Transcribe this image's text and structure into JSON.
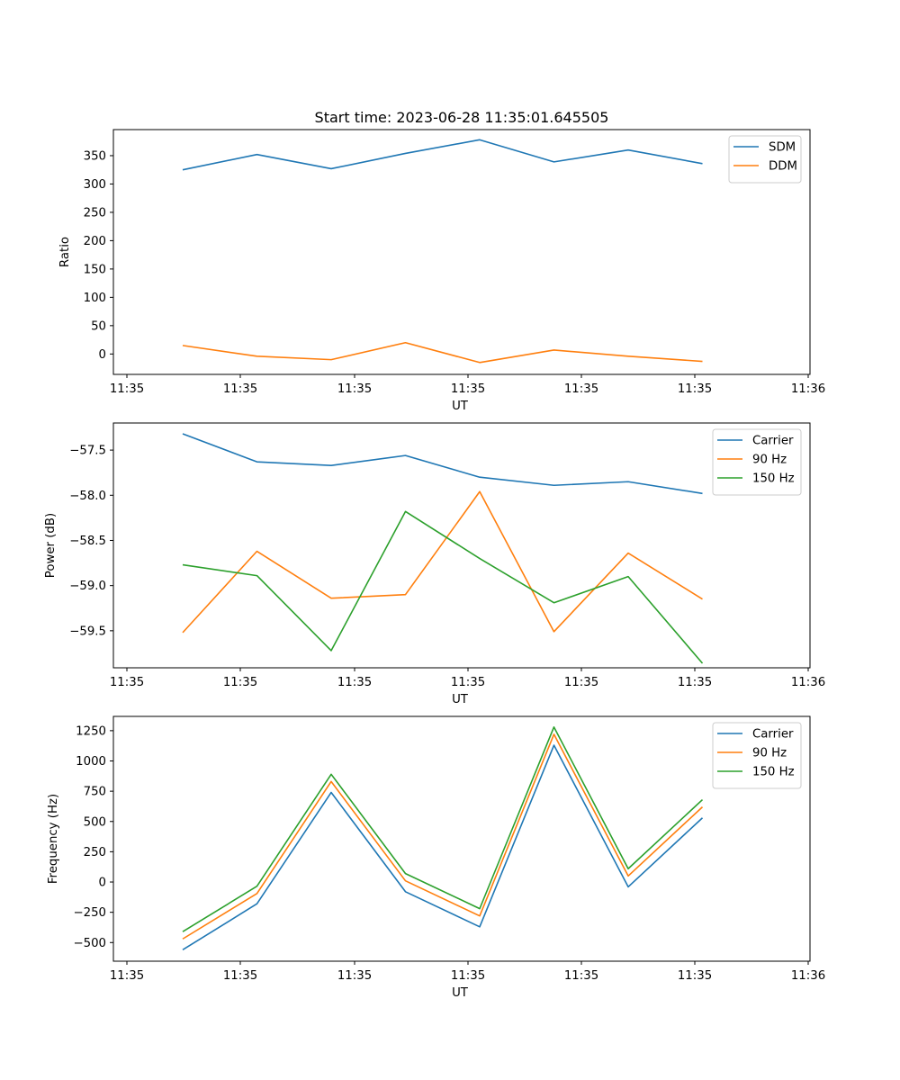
{
  "chart_data": [
    {
      "type": "line",
      "title": "Start time: 2023-06-28 11:35:01.645505",
      "xlabel": "UT",
      "ylabel": "Ratio",
      "x_tick_labels": [
        "11:35",
        "11:35",
        "11:35",
        "11:35",
        "11:35",
        "11:35",
        "11:36"
      ],
      "y_ticks": [
        0,
        50,
        100,
        150,
        200,
        250,
        300,
        350
      ],
      "y_tick_labels": [
        "0",
        "50",
        "100",
        "150",
        "200",
        "250",
        "300",
        "350"
      ],
      "ylim": [
        -36,
        396
      ],
      "grid": false,
      "legend_position": "top-right",
      "series": [
        {
          "name": "SDM",
          "color": "#1f77b4",
          "values": [
            325,
            352,
            327,
            354,
            378,
            339,
            360,
            336
          ]
        },
        {
          "name": "DDM",
          "color": "#ff7f0e",
          "values": [
            15,
            -4,
            -10,
            20,
            -15,
            7,
            -4,
            -13
          ]
        }
      ]
    },
    {
      "type": "line",
      "title": "",
      "xlabel": "UT",
      "ylabel": "Power (dB)",
      "x_tick_labels": [
        "11:35",
        "11:35",
        "11:35",
        "11:35",
        "11:35",
        "11:35",
        "11:36"
      ],
      "y_ticks": [
        -59.5,
        -59.0,
        -58.5,
        -58.0,
        -57.5
      ],
      "y_tick_labels": [
        "−59.5",
        "−59.0",
        "−58.5",
        "−58.0",
        "−57.5"
      ],
      "ylim": [
        -59.91,
        -57.2
      ],
      "grid": false,
      "legend_position": "top-right",
      "series": [
        {
          "name": "Carrier",
          "color": "#1f77b4",
          "values": [
            -57.32,
            -57.63,
            -57.67,
            -57.56,
            -57.8,
            -57.89,
            -57.85,
            -57.98
          ]
        },
        {
          "name": "90 Hz",
          "color": "#ff7f0e",
          "values": [
            -59.52,
            -58.62,
            -59.14,
            -59.1,
            -57.96,
            -59.51,
            -58.64,
            -59.15
          ]
        },
        {
          "name": "150 Hz",
          "color": "#2ca02c",
          "values": [
            -58.77,
            -58.89,
            -59.72,
            -58.18,
            -58.7,
            -59.19,
            -58.9,
            -59.86
          ]
        }
      ]
    },
    {
      "type": "line",
      "title": "",
      "xlabel": "UT",
      "ylabel": "Frequency (Hz)",
      "x_tick_labels": [
        "11:35",
        "11:35",
        "11:35",
        "11:35",
        "11:35",
        "11:35",
        "11:36"
      ],
      "y_ticks": [
        -500,
        -250,
        0,
        250,
        500,
        750,
        1000,
        1250
      ],
      "y_tick_labels": [
        "−500",
        "−250",
        "0",
        "250",
        "500",
        "750",
        "1000",
        "1250"
      ],
      "ylim": [
        -654,
        1368
      ],
      "grid": false,
      "legend_position": "top-right",
      "series": [
        {
          "name": "Carrier",
          "color": "#1f77b4",
          "values": [
            -560,
            -180,
            740,
            -80,
            -370,
            1130,
            -40,
            530
          ]
        },
        {
          "name": "90 Hz",
          "color": "#ff7f0e",
          "values": [
            -470,
            -95,
            830,
            10,
            -280,
            1220,
            50,
            620
          ]
        },
        {
          "name": "150 Hz",
          "color": "#2ca02c",
          "values": [
            -410,
            -35,
            890,
            70,
            -220,
            1280,
            110,
            680
          ]
        }
      ]
    }
  ]
}
